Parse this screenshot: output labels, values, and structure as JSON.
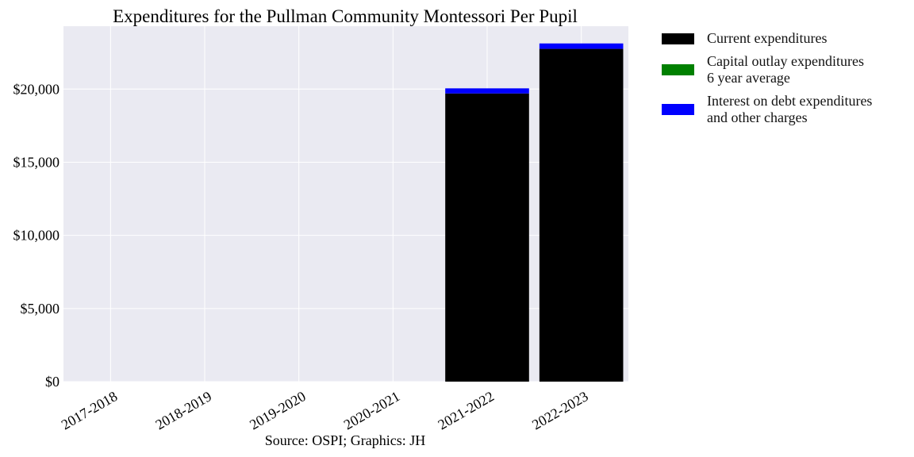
{
  "chart_data": {
    "type": "bar",
    "stacked": true,
    "title": "Expenditures for the Pullman Community Montessori Per Pupil",
    "categories": [
      "2017-2018",
      "2018-2019",
      "2019-2020",
      "2020-2021",
      "2021-2022",
      "2022-2023"
    ],
    "series": [
      {
        "name": "Current expenditures",
        "color": "#000000",
        "values": [
          0,
          0,
          0,
          0,
          19700,
          22750
        ]
      },
      {
        "name": "Capital outlay expenditures\n6 year average",
        "color": "#008000",
        "values": [
          0,
          0,
          0,
          0,
          0,
          0
        ]
      },
      {
        "name": "Interest on debt expenditures\nand other charges",
        "color": "#0000ff",
        "values": [
          0,
          0,
          0,
          0,
          350,
          370
        ]
      }
    ],
    "ylim": [
      0,
      24300
    ],
    "yticks": [
      0,
      5000,
      10000,
      15000,
      20000
    ],
    "ytick_labels": [
      "$0",
      "$5,000",
      "$10,000",
      "$15,000",
      "$20,000"
    ],
    "grid": true,
    "legend_position": "outside-right-top",
    "source": "Source: OSPI; Graphics: JH"
  }
}
